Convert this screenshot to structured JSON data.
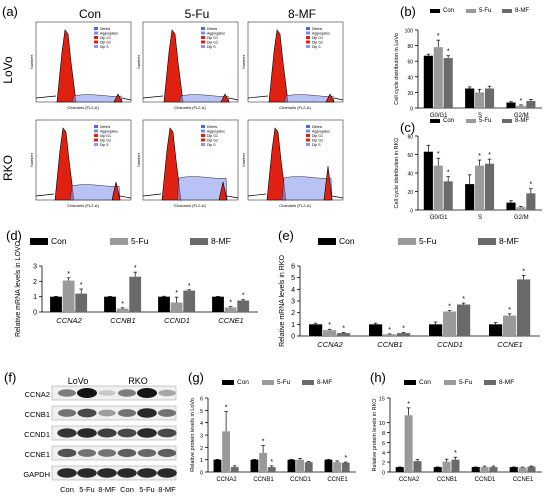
{
  "colors": {
    "con": "#000000",
    "fu": "#9a9a9a",
    "mf": "#6a6a6a",
    "histo_red": "#e02010",
    "histo_blue": "#8899ee"
  },
  "panel_labels": {
    "a": "(a)",
    "b": "(b)",
    "c": "(c)",
    "d": "(d)",
    "e": "(e)",
    "f": "(f)",
    "g": "(g)",
    "h": "(h)"
  },
  "flow": {
    "columns": [
      "Con",
      "5-Fu",
      "8-MF"
    ],
    "rows": [
      "LoVo",
      "RKO"
    ],
    "legend_items": [
      "Debris",
      "Aggregates",
      "Dip G1",
      "Dip G2",
      "Dip S"
    ],
    "xaxis": "Channels (FL2-A)",
    "yaxis": "Number"
  },
  "chart_data": [
    {
      "id": "b",
      "type": "bar",
      "ylabel": "Cell cycle distribution in LoVo",
      "categories": [
        "G0/G1",
        "S",
        "G2/M"
      ],
      "ylim": [
        0,
        100
      ],
      "yticks": [
        0,
        20,
        40,
        60,
        80,
        100
      ],
      "series": [
        {
          "name": "Con",
          "values": [
            67,
            25,
            7
          ],
          "errors": [
            2,
            2,
            1
          ]
        },
        {
          "name": "5-Fu",
          "values": [
            78,
            20,
            3
          ],
          "errors": [
            9,
            4,
            1
          ]
        },
        {
          "name": "8-MF",
          "values": [
            64,
            25,
            9
          ],
          "errors": [
            3,
            3,
            2
          ]
        }
      ],
      "star_labels": [
        "*",
        "*",
        "*"
      ]
    },
    {
      "id": "c",
      "type": "bar",
      "ylabel": "Cell cycle distribution in RKO",
      "categories": [
        "G0/G1",
        "S",
        "G2/M"
      ],
      "ylim": [
        0,
        80
      ],
      "yticks": [
        0,
        20,
        40,
        60,
        80
      ],
      "series": [
        {
          "name": "Con",
          "values": [
            63,
            28,
            8
          ],
          "errors": [
            7,
            10,
            2
          ]
        },
        {
          "name": "5-Fu",
          "values": [
            48,
            48,
            3
          ],
          "errors": [
            8,
            6,
            1
          ]
        },
        {
          "name": "8-MF",
          "values": [
            31,
            50,
            18
          ],
          "errors": [
            5,
            5,
            5
          ]
        }
      ],
      "star_labels": [
        "*",
        "*",
        "*",
        "*",
        "*"
      ]
    },
    {
      "id": "d",
      "type": "bar",
      "ylabel": "Relative mRNA levels in LOVO",
      "categories": [
        "CCNA2",
        "CCNB1",
        "CCND1",
        "CCNE1"
      ],
      "ylim": [
        0,
        3
      ],
      "yticks": [
        0,
        1,
        2,
        3
      ],
      "series": [
        {
          "name": "Con",
          "values": [
            1.0,
            1.0,
            1.0,
            1.0
          ],
          "errors": [
            0.02,
            0.02,
            0.03,
            0.02
          ]
        },
        {
          "name": "5-Fu",
          "values": [
            2.05,
            0.22,
            0.62,
            0.3
          ],
          "errors": [
            0.18,
            0.05,
            0.35,
            0.05
          ]
        },
        {
          "name": "8-MF",
          "values": [
            1.2,
            2.3,
            1.4,
            0.75
          ],
          "errors": [
            0.3,
            0.3,
            0.05,
            0.05
          ]
        }
      ],
      "star_labels": [
        "*",
        "*",
        "*",
        "*",
        "*",
        "*",
        "*",
        "*"
      ]
    },
    {
      "id": "e",
      "type": "bar",
      "ylabel": "Relative mRNA levels in RKO",
      "categories": [
        "CCNA2",
        "CCNB1",
        "CCND1",
        "CCNE1"
      ],
      "ylim": [
        0,
        6
      ],
      "yticks": [
        0,
        1,
        2,
        3,
        4,
        5,
        6
      ],
      "series": [
        {
          "name": "Con",
          "values": [
            1.0,
            1.0,
            1.0,
            1.0
          ],
          "errors": [
            0.1,
            0.1,
            0.2,
            0.15
          ]
        },
        {
          "name": "5-Fu",
          "values": [
            0.5,
            0.15,
            2.1,
            1.75
          ],
          "errors": [
            0.08,
            0.03,
            0.08,
            0.15
          ]
        },
        {
          "name": "8-MF",
          "values": [
            0.25,
            0.25,
            2.7,
            4.85
          ],
          "errors": [
            0.05,
            0.05,
            0.12,
            0.35
          ]
        }
      ],
      "star_labels": [
        "*",
        "*",
        "*",
        "*",
        "*",
        "*",
        "*",
        "*"
      ]
    },
    {
      "id": "g",
      "type": "bar",
      "ylabel": "Relative protein levels in LoVo",
      "categories": [
        "CCNA2",
        "CCNB1",
        "CCND1",
        "CCNE1"
      ],
      "ylim": [
        0,
        6
      ],
      "yticks": [
        0,
        1,
        2,
        3,
        4,
        5,
        6
      ],
      "series": [
        {
          "name": "Con",
          "values": [
            1.0,
            1.0,
            1.0,
            1.0
          ],
          "errors": [
            0.02,
            0.02,
            0.02,
            0.02
          ]
        },
        {
          "name": "5-Fu",
          "values": [
            3.3,
            1.55,
            1.0,
            0.8
          ],
          "errors": [
            1.6,
            0.6,
            0.1,
            0.1
          ]
        },
        {
          "name": "8-MF",
          "values": [
            0.4,
            0.4,
            0.8,
            0.75
          ],
          "errors": [
            0.1,
            0.1,
            0.05,
            0.05
          ]
        }
      ],
      "star_labels": [
        "*",
        "*",
        "*",
        "*"
      ]
    },
    {
      "id": "h",
      "type": "bar",
      "ylabel": "Relative protein levels in RKO",
      "categories": [
        "CCNA2",
        "CCNB1",
        "CCND1",
        "CCNE1"
      ],
      "ylim": [
        0,
        15
      ],
      "yticks": [
        0,
        2,
        4,
        6,
        8,
        10,
        15
      ],
      "series": [
        {
          "name": "Con",
          "values": [
            1.0,
            1.0,
            1.0,
            1.0
          ],
          "errors": [
            0.02,
            0.02,
            0.02,
            0.02
          ]
        },
        {
          "name": "5-Fu",
          "values": [
            11.5,
            2.1,
            1.0,
            0.9
          ],
          "errors": [
            1.5,
            0.5,
            0.2,
            0.1
          ]
        },
        {
          "name": "8-MF",
          "values": [
            2.2,
            2.5,
            1.0,
            1.1
          ],
          "errors": [
            0.3,
            0.5,
            0.2,
            0.1
          ]
        }
      ],
      "star_labels": [
        "*",
        "*",
        "*"
      ]
    }
  ],
  "western": {
    "groups": [
      "LoVo",
      "RKO"
    ],
    "lanes": [
      "Con",
      "5-Fu",
      "8-MF",
      "Con",
      "5-Fu",
      "8-MF"
    ],
    "proteins": [
      "CCNA2",
      "CCNB1",
      "CCND1",
      "CCNE1",
      "GAPDH"
    ],
    "band_intensity": [
      [
        0.5,
        1.0,
        0.15,
        0.5,
        1.0,
        0.3
      ],
      [
        0.55,
        0.75,
        0.35,
        0.55,
        0.9,
        0.55
      ],
      [
        0.85,
        0.9,
        0.8,
        0.75,
        0.9,
        0.75
      ],
      [
        0.7,
        0.55,
        0.55,
        0.65,
        0.6,
        0.65
      ],
      [
        0.9,
        0.9,
        0.9,
        0.9,
        0.9,
        0.9
      ]
    ]
  }
}
